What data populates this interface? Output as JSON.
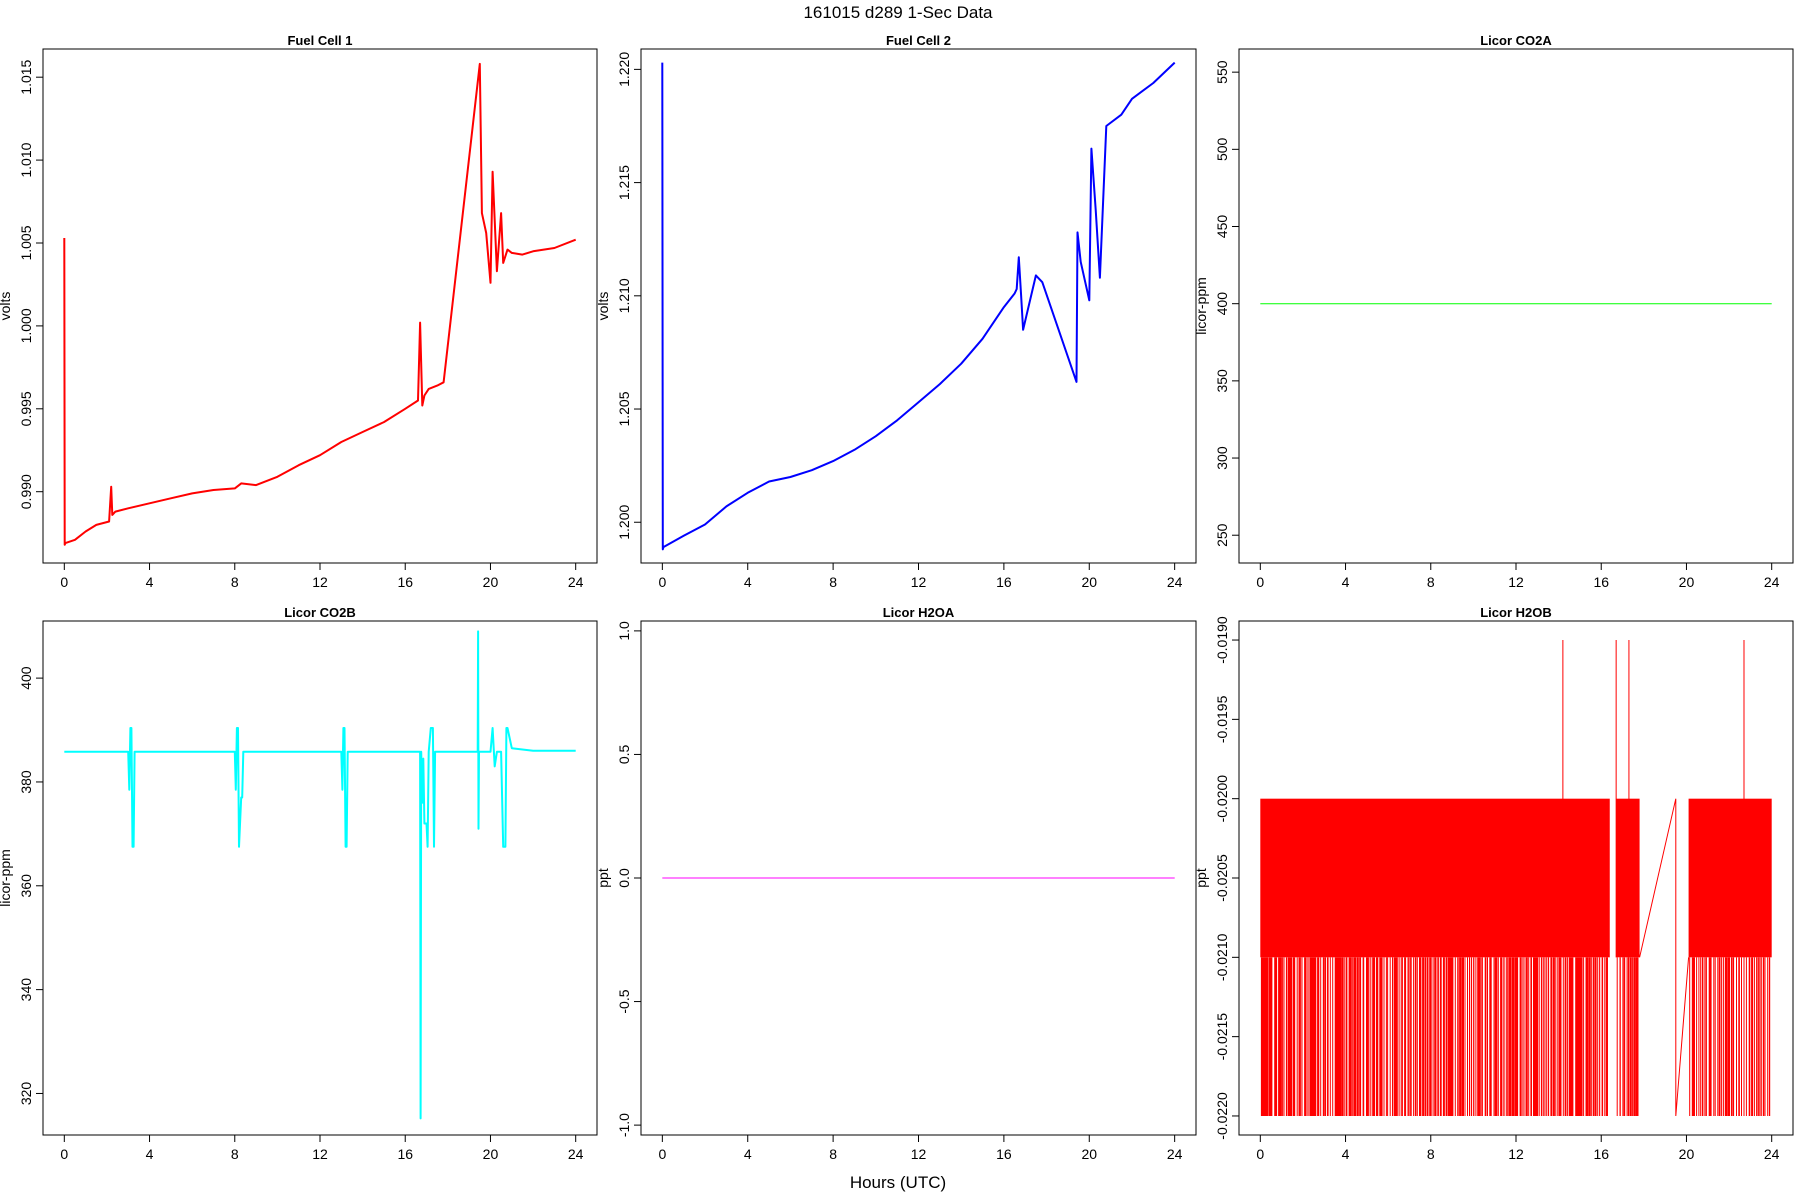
{
  "figure_title": "161015   d289   1-Sec Data",
  "xlabel": "Hours (UTC)",
  "chart_data": [
    {
      "type": "line",
      "title": "Fuel Cell 1",
      "ylabel": "volts",
      "color": "#ff0000",
      "xlim": [
        -1,
        25
      ],
      "ylim": [
        0.9857,
        1.0167
      ],
      "xticks": [
        0,
        4,
        8,
        12,
        16,
        20,
        24
      ],
      "yticks": [
        0.99,
        0.995,
        1.0,
        1.005,
        1.01,
        1.015
      ],
      "ytick_labels": [
        "0.990",
        "0.995",
        "1.000",
        "1.005",
        "1.010",
        "1.015"
      ],
      "x": [
        0,
        0.02,
        0.05,
        0.5,
        1,
        1.5,
        2.1,
        2.2,
        2.25,
        2.4,
        3,
        4,
        5,
        6,
        7,
        8,
        8.3,
        9,
        10,
        11,
        12,
        13,
        14,
        15,
        16,
        16.6,
        16.7,
        16.8,
        16.9,
        17.1,
        17.5,
        17.8,
        19.5,
        19.6,
        19.8,
        20.0,
        20.1,
        20.3,
        20.5,
        20.6,
        20.8,
        21,
        21.5,
        22,
        23,
        24
      ],
      "y": [
        1.0053,
        0.9868,
        0.9869,
        0.9871,
        0.9876,
        0.988,
        0.9882,
        0.9903,
        0.9886,
        0.9888,
        0.989,
        0.9893,
        0.9896,
        0.9899,
        0.9901,
        0.9902,
        0.9905,
        0.9904,
        0.9909,
        0.9916,
        0.9922,
        0.993,
        0.9936,
        0.9942,
        0.995,
        0.9955,
        1.0002,
        0.9952,
        0.9958,
        0.9962,
        0.9964,
        0.9966,
        1.0158,
        1.0068,
        1.0056,
        1.0026,
        1.0093,
        1.0033,
        1.0068,
        1.0038,
        1.0046,
        1.0044,
        1.0043,
        1.0045,
        1.0047,
        1.0052
      ]
    },
    {
      "type": "line",
      "title": "Fuel Cell 2",
      "ylabel": "volts",
      "color": "#0000ff",
      "xlim": [
        -1,
        25
      ],
      "ylim": [
        1.1982,
        1.2209
      ],
      "xticks": [
        0,
        4,
        8,
        12,
        16,
        20,
        24
      ],
      "yticks": [
        1.2,
        1.205,
        1.21,
        1.215,
        1.22
      ],
      "ytick_labels": [
        "1.200",
        "1.205",
        "1.210",
        "1.215",
        "1.220"
      ],
      "x": [
        0,
        0.02,
        0.05,
        1,
        2,
        3,
        4,
        5,
        6,
        7,
        8,
        9,
        10,
        11,
        12,
        13,
        14,
        15,
        16,
        16.5,
        16.6,
        16.7,
        16.8,
        16.9,
        17.5,
        17.8,
        19.4,
        19.45,
        19.6,
        20.0,
        20.1,
        20.3,
        20.5,
        20.8,
        21.5,
        22,
        23,
        24
      ],
      "y": [
        1.2203,
        1.1988,
        1.1989,
        1.1994,
        1.1999,
        1.2007,
        1.2013,
        1.2018,
        1.202,
        1.2023,
        1.2027,
        1.2032,
        1.2038,
        1.2045,
        1.2053,
        1.2061,
        1.207,
        1.2081,
        1.2095,
        1.2101,
        1.2103,
        1.2117,
        1.2101,
        1.2085,
        1.2109,
        1.2106,
        1.2062,
        1.2128,
        1.2115,
        1.2098,
        1.2165,
        1.2138,
        1.2108,
        1.2175,
        1.218,
        1.2187,
        1.2194,
        1.2203
      ]
    },
    {
      "type": "line",
      "title": "Licor CO2A",
      "ylabel": "licor-ppm",
      "color": "#00ff00",
      "xlim": [
        -1,
        25
      ],
      "ylim": [
        232,
        565
      ],
      "xticks": [
        0,
        4,
        8,
        12,
        16,
        20,
        24
      ],
      "yticks": [
        250,
        300,
        350,
        400,
        450,
        500,
        550
      ],
      "ytick_labels": [
        "250",
        "300",
        "350",
        "400",
        "450",
        "500",
        "550"
      ],
      "x": [
        0,
        24
      ],
      "y": [
        400,
        400
      ]
    },
    {
      "type": "line",
      "title": "Licor CO2B",
      "ylabel": "licor-ppm",
      "color": "#00ffff",
      "xlim": [
        -1,
        25
      ],
      "ylim": [
        312,
        411
      ],
      "xticks": [
        0,
        4,
        8,
        12,
        16,
        20,
        24
      ],
      "yticks": [
        320,
        340,
        360,
        380,
        400
      ],
      "ytick_labels": [
        "320",
        "340",
        "360",
        "380",
        "400"
      ],
      "x": [
        0,
        3.0,
        3.05,
        3.1,
        3.15,
        3.2,
        3.25,
        3.3,
        3.35,
        3.4,
        3.45,
        8.0,
        8.05,
        8.1,
        8.15,
        8.2,
        8.3,
        8.35,
        8.4,
        8.45,
        8.5,
        8.55,
        8.6,
        13.0,
        13.05,
        13.1,
        13.15,
        13.2,
        13.25,
        13.3,
        13.35,
        13.4,
        13.45,
        13.5,
        16.7,
        16.72,
        16.75,
        16.8,
        16.85,
        16.9,
        17.0,
        17.05,
        17.1,
        17.2,
        17.3,
        17.35,
        17.4,
        17.5,
        17.7,
        17.75,
        19.4,
        19.42,
        19.44,
        19.46,
        20.0,
        20.1,
        20.2,
        20.3,
        20.4,
        20.5,
        20.6,
        20.7,
        20.75,
        20.8,
        21,
        22,
        23,
        24
      ],
      "y": [
        385.8,
        385.8,
        378.5,
        390.4,
        390.4,
        367.5,
        367.5,
        385.8,
        385.8,
        385.8,
        385.8,
        385.8,
        378.5,
        390.4,
        390.4,
        367.5,
        377,
        377,
        385.8,
        385.8,
        385.8,
        385.8,
        385.8,
        385.8,
        378.5,
        390.4,
        390.4,
        367.5,
        367.5,
        385.8,
        385.8,
        385.8,
        385.8,
        385.8,
        385.8,
        315.2,
        385.8,
        376,
        384.5,
        372,
        372,
        367.5,
        385.8,
        390.4,
        390.4,
        367.5,
        385.8,
        385.8,
        385.8,
        385.8,
        385.8,
        409,
        371,
        385.8,
        385.8,
        390.4,
        383.0,
        385.8,
        385.8,
        385.8,
        367.5,
        367.5,
        390.4,
        390.4,
        386.5,
        386.0,
        386.0,
        386.0
      ]
    },
    {
      "type": "line",
      "title": "Licor H2OA",
      "ylabel": "ppt",
      "color": "#ff00ff",
      "xlim": [
        -1,
        25
      ],
      "ylim": [
        -1.04,
        1.04
      ],
      "xticks": [
        0,
        4,
        8,
        12,
        16,
        20,
        24
      ],
      "yticks": [
        -1.0,
        -0.5,
        0.0,
        0.5,
        1.0
      ],
      "ytick_labels": [
        "-1.0",
        "-0.5",
        "0.0",
        "0.5",
        "1.0"
      ],
      "x": [
        0,
        24
      ],
      "y": [
        0,
        0
      ]
    },
    {
      "type": "line",
      "title": "Licor H2OB",
      "ylabel": "ppt",
      "color": "#ff0000",
      "xlim": [
        -1,
        25
      ],
      "ylim": [
        -0.02212,
        -0.01888
      ],
      "xticks": [
        0,
        4,
        8,
        12,
        16,
        20,
        24
      ],
      "yticks": [
        -0.022,
        -0.0215,
        -0.021,
        -0.0205,
        -0.02,
        -0.0195,
        -0.019
      ],
      "ytick_labels": [
        "-0.0220",
        "-0.0215",
        "-0.0210",
        "-0.0205",
        "-0.0200",
        "-0.0195",
        "-0.0190"
      ],
      "dense_bands": [
        {
          "x_start": 0,
          "x_end": 16.4,
          "y_low": -0.021,
          "y_high": -0.02
        },
        {
          "x_start": 16.7,
          "x_end": 17.8,
          "y_low": -0.021,
          "y_high": -0.02
        },
        {
          "x_start": 20.1,
          "x_end": 24,
          "y_low": -0.021,
          "y_high": -0.02
        }
      ],
      "spikes": {
        "y_base": -0.021,
        "y_low": -0.022,
        "y_high": -0.019,
        "low_x_ranges": [
          [
            0.05,
            16.35
          ],
          [
            16.75,
            17.75
          ],
          [
            20.15,
            23.95
          ]
        ],
        "high_x": [
          14.2,
          16.7,
          17.3,
          22.7
        ]
      },
      "x": [
        17.8,
        19.5,
        19.5,
        20.1
      ],
      "y": [
        -0.021,
        -0.02,
        -0.022,
        -0.021
      ]
    }
  ]
}
